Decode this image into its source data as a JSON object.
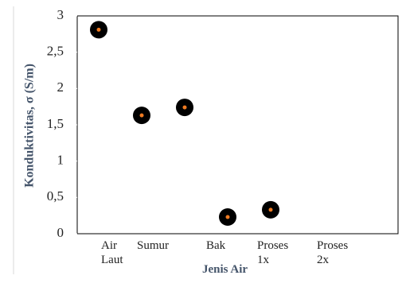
{
  "chart_data": {
    "type": "scatter",
    "x_label": "Jenis Air",
    "y_label": "Konduktivitas, σ (S/m)",
    "categories": [
      "Air Laut",
      "Sumur",
      "Bak",
      "Proses 1x",
      "Proses 2x"
    ],
    "values": [
      2.81,
      1.63,
      1.74,
      0.23,
      0.33
    ],
    "color": "#000000",
    "center_color": "#f07b22",
    "ylim": [
      0,
      3
    ],
    "yticks": [
      0,
      {
        "value": 0.5,
        "label": "0,5"
      },
      1,
      {
        "value": 1.5,
        "label": "1,5"
      },
      2,
      {
        "value": 2.5,
        "label": "2,5"
      },
      3
    ]
  }
}
